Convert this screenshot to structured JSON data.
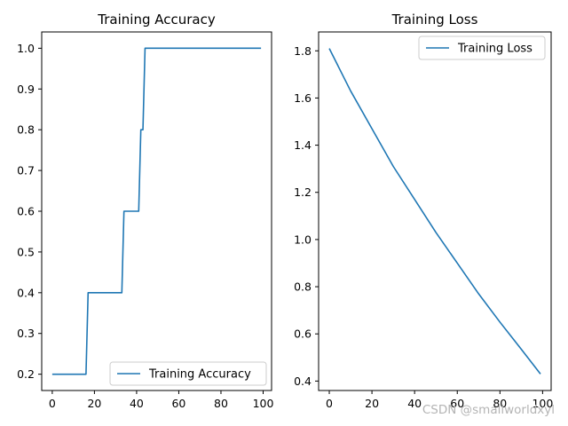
{
  "chart_data": [
    {
      "type": "line",
      "title": "Training Accuracy",
      "xlabel": "",
      "ylabel": "",
      "xlim": [
        -5,
        104
      ],
      "ylim": [
        0.16,
        1.04
      ],
      "xticks": [
        0,
        20,
        40,
        60,
        80,
        100
      ],
      "xtick_labels": [
        "0",
        "20",
        "40",
        "60",
        "80",
        "100"
      ],
      "yticks": [
        0.2,
        0.3,
        0.4,
        0.5,
        0.6,
        0.7,
        0.8,
        0.9,
        1.0
      ],
      "ytick_labels": [
        "0.2",
        "0.3",
        "0.4",
        "0.5",
        "0.6",
        "0.7",
        "0.8",
        "0.9",
        "1.0"
      ],
      "grid": false,
      "legend_loc": "lower right",
      "series": [
        {
          "name": "Training Accuracy",
          "color": "#1f77b4",
          "x": [
            0,
            16,
            17,
            33,
            34,
            41,
            42,
            43,
            44,
            99
          ],
          "y": [
            0.2,
            0.2,
            0.4,
            0.4,
            0.6,
            0.6,
            0.8,
            0.8,
            1.0,
            1.0
          ]
        }
      ]
    },
    {
      "type": "line",
      "title": "Training Loss",
      "xlabel": "",
      "ylabel": "",
      "xlim": [
        -5,
        104
      ],
      "ylim": [
        0.36,
        1.88
      ],
      "xticks": [
        0,
        20,
        40,
        60,
        80,
        100
      ],
      "xtick_labels": [
        "0",
        "20",
        "40",
        "60",
        "80",
        "100"
      ],
      "yticks": [
        0.4,
        0.6,
        0.8,
        1.0,
        1.2,
        1.4,
        1.6,
        1.8
      ],
      "ytick_labels": [
        "0.4",
        "0.6",
        "0.8",
        "1.0",
        "1.2",
        "1.4",
        "1.6",
        "1.8"
      ],
      "grid": false,
      "legend_loc": "upper right",
      "series": [
        {
          "name": "Training Loss",
          "color": "#1f77b4",
          "x": [
            0,
            10,
            20,
            30,
            40,
            50,
            60,
            70,
            80,
            90,
            99
          ],
          "y": [
            1.81,
            1.63,
            1.47,
            1.31,
            1.17,
            1.03,
            0.9,
            0.77,
            0.65,
            0.535,
            0.43
          ]
        }
      ]
    }
  ],
  "watermark": "CSDN @smallworldxyl"
}
